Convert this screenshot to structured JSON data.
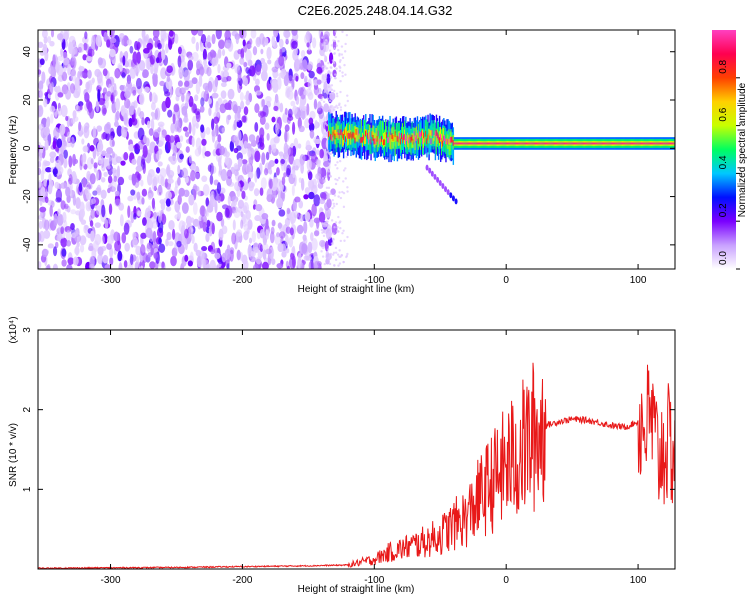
{
  "title": "C2E6.2025.248.04.14.G32",
  "chart_data": [
    {
      "type": "heatmap",
      "title": "C2E6.2025.248.04.14.G32",
      "xlabel": "Height of straight line (km)",
      "ylabel": "Frequency (Hz)",
      "xlim": [
        -355,
        128
      ],
      "ylim": [
        -50,
        49
      ],
      "xticks": [
        -300,
        -200,
        -100,
        0,
        100
      ],
      "yticks": [
        -40,
        -20,
        0,
        20,
        40
      ],
      "colorbar": {
        "label": "Normalized spectral amplitude",
        "range": [
          0.0,
          1.0
        ],
        "ticks": [
          0.0,
          0.2,
          0.4,
          0.6,
          0.8
        ],
        "tick_labels": [
          "0.0",
          "0.2",
          "0.4",
          "0.6",
          "0.8"
        ],
        "colors": [
          "#ffffff",
          "#c8a0ff",
          "#7a00ff",
          "#0010ff",
          "#00c8ff",
          "#00ff60",
          "#c8ff00",
          "#ffd000",
          "#ff4000",
          "#ff0050",
          "#ff40c0"
        ]
      },
      "regions": [
        {
          "description": "scattered noise",
          "x_range": [
            -355,
            -130
          ],
          "y_range": [
            -50,
            49
          ],
          "amplitude": [
            0.05,
            0.25
          ]
        },
        {
          "description": "signal band",
          "x_range": [
            -135,
            128
          ],
          "center_freq": 2,
          "amplitude": [
            0.4,
            1.0
          ]
        },
        {
          "description": "weak streak",
          "x_range": [
            -60,
            -38
          ],
          "y_range": [
            -22,
            -8
          ],
          "amplitude": 0.2
        }
      ],
      "signal_track": [
        {
          "x": -135,
          "y": 6
        },
        {
          "x": -110,
          "y": 5
        },
        {
          "x": -90,
          "y": 4
        },
        {
          "x": -70,
          "y": 4
        },
        {
          "x": -55,
          "y": 5
        },
        {
          "x": -40,
          "y": 2
        },
        {
          "x": -20,
          "y": 2
        },
        {
          "x": 0,
          "y": 2
        },
        {
          "x": 40,
          "y": 2
        },
        {
          "x": 80,
          "y": 2
        },
        {
          "x": 100,
          "y": 2
        },
        {
          "x": 128,
          "y": 2
        }
      ]
    },
    {
      "type": "line",
      "xlabel": "Height of straight line (km)",
      "ylabel": "SNR (10 * v/v)",
      "yscale_label": "(x10⁴)",
      "xlim": [
        -355,
        128
      ],
      "ylim": [
        0,
        3
      ],
      "xticks": [
        -300,
        -200,
        -100,
        0,
        100
      ],
      "yticks": [
        1,
        2,
        3
      ],
      "color": "#e81818",
      "series": [
        {
          "x": [
            -355,
            -300,
            -250,
            -200,
            -150,
            -120,
            -100,
            -90,
            -80,
            -70,
            -60,
            -50,
            -40,
            -30,
            -20,
            -10,
            0,
            10,
            20,
            30,
            40,
            50,
            60,
            70,
            80,
            90,
            100,
            105,
            110,
            115,
            120,
            128
          ],
          "values": [
            0.01,
            0.015,
            0.02,
            0.03,
            0.04,
            0.05,
            0.12,
            0.2,
            0.25,
            0.3,
            0.35,
            0.42,
            0.55,
            0.65,
            0.9,
            1.1,
            1.3,
            1.45,
            1.65,
            1.8,
            1.85,
            1.88,
            1.87,
            1.84,
            1.8,
            1.78,
            1.85,
            1.8,
            1.9,
            1.4,
            1.55,
            1.5
          ]
        }
      ]
    }
  ]
}
